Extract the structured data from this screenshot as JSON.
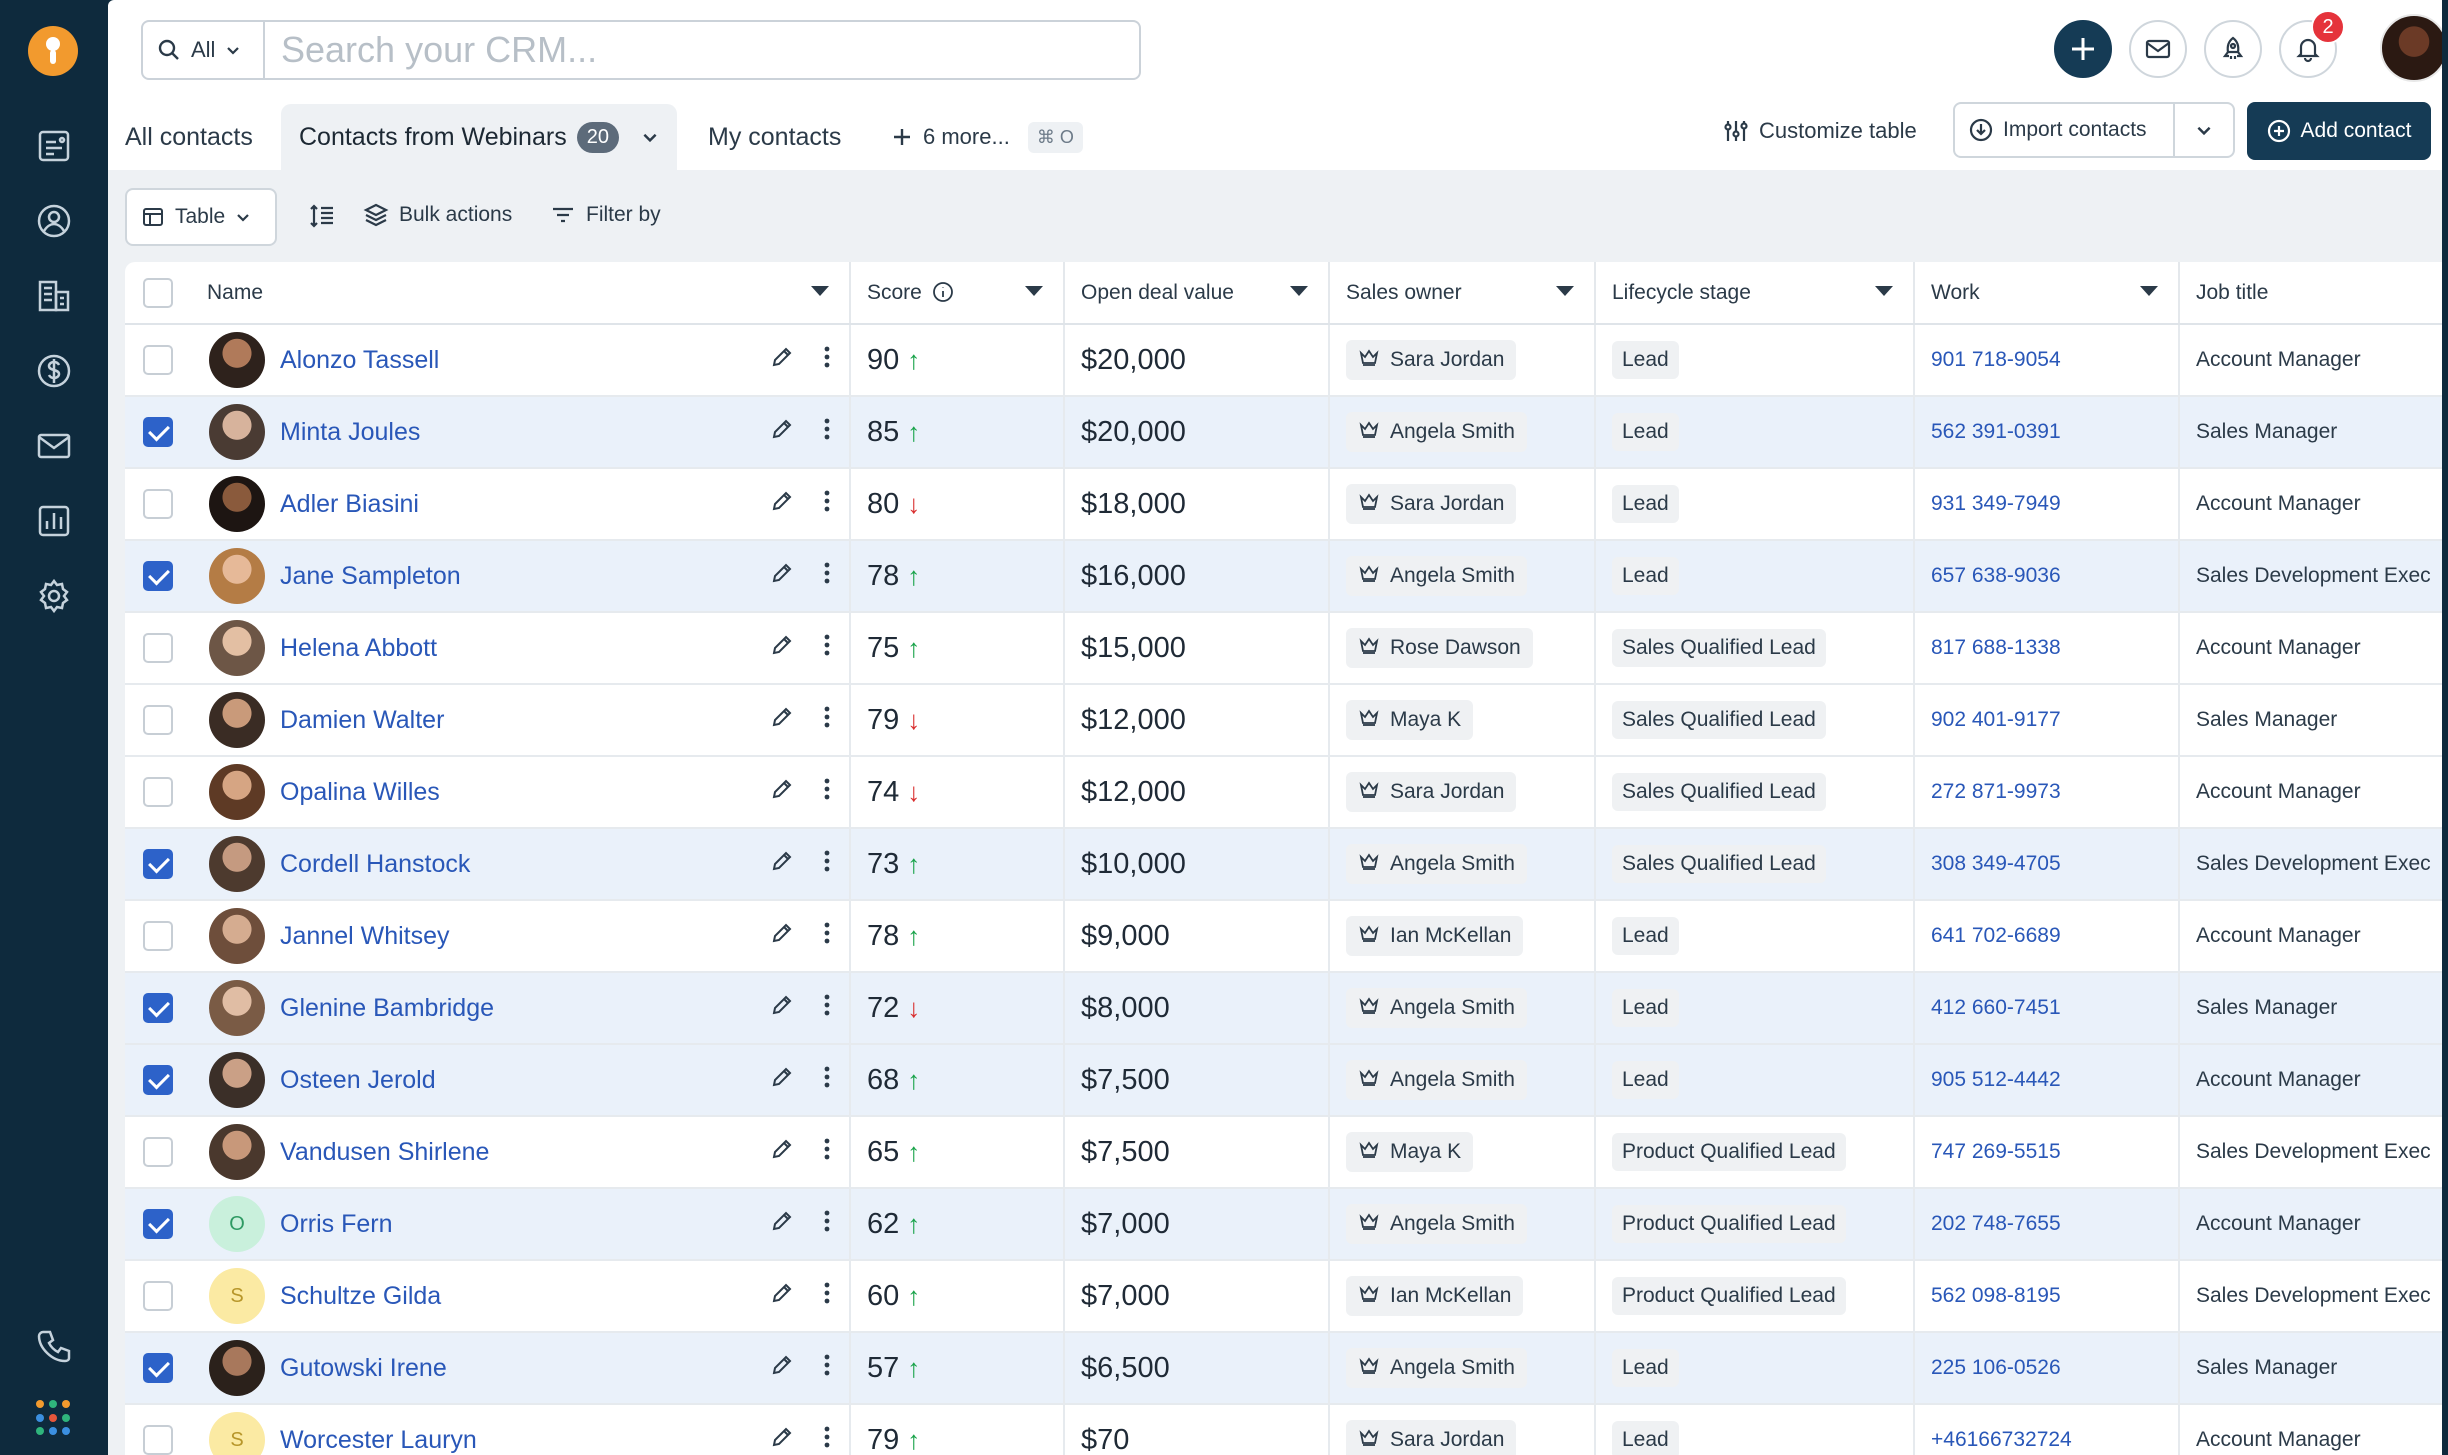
{
  "colors": {
    "sidebar_bg": "#0e2a3d",
    "brand_orange": "#f29a2e",
    "primary_dark": "#153b55",
    "link_blue": "#2957b8",
    "checkbox_blue": "#2d62c9",
    "score_up": "#19a34a",
    "score_down": "#d92f2f",
    "notif_red": "#e5333b"
  },
  "sidebar": {
    "items": [
      {
        "icon": "dashboard-icon"
      },
      {
        "icon": "contacts-icon"
      },
      {
        "icon": "companies-icon"
      },
      {
        "icon": "deals-icon"
      },
      {
        "icon": "email-icon"
      },
      {
        "icon": "reports-icon"
      },
      {
        "icon": "settings-icon"
      }
    ],
    "bottom": [
      {
        "icon": "phone-icon"
      },
      {
        "icon": "apps-grid-icon"
      }
    ]
  },
  "topbar": {
    "search_filter": "All",
    "search_placeholder": "Search your CRM...",
    "notification_count": "2"
  },
  "tabs": {
    "all_contacts": "All contacts",
    "active_tab": "Contacts from Webinars",
    "active_count": "20",
    "my_contacts": "My contacts",
    "more": "6 more...",
    "more_shortcut": "⌘ O"
  },
  "actions": {
    "customize_table": "Customize table",
    "import_contacts": "Import contacts",
    "add_contact": "Add contact"
  },
  "toolbar": {
    "view": "Table",
    "bulk_actions": "Bulk actions",
    "filter_by": "Filter by"
  },
  "table": {
    "columns": {
      "name": "Name",
      "score": "Score",
      "deal": "Open deal value",
      "owner": "Sales owner",
      "stage": "Lifecycle stage",
      "work": "Work",
      "job": "Job title"
    },
    "rows": [
      {
        "checked": false,
        "name": "Alonzo Tassell",
        "avatar": {
          "type": "photo",
          "skin": "#b07a5a",
          "hair": "#2e221c"
        },
        "score": "90",
        "trend": "up",
        "deal": "$20,000",
        "owner": "Sara Jordan",
        "stage": "Lead",
        "work": "901 718-9054",
        "job": "Account Manager"
      },
      {
        "checked": true,
        "name": "Minta Joules",
        "avatar": {
          "type": "photo",
          "skin": "#d7b39c",
          "hair": "#4a3b33"
        },
        "score": "85",
        "trend": "up",
        "deal": "$20,000",
        "owner": "Angela Smith",
        "stage": "Lead",
        "work": "562 391-0391",
        "job": "Sales Manager"
      },
      {
        "checked": false,
        "name": "Adler Biasini",
        "avatar": {
          "type": "photo",
          "skin": "#8a5a3c",
          "hair": "#1d1512"
        },
        "score": "80",
        "trend": "down",
        "deal": "$18,000",
        "owner": "Sara Jordan",
        "stage": "Lead",
        "work": "931 349-7949",
        "job": "Account Manager"
      },
      {
        "checked": true,
        "name": "Jane Sampleton",
        "avatar": {
          "type": "photo",
          "skin": "#e6b998",
          "hair": "#b47c45"
        },
        "score": "78",
        "trend": "up",
        "deal": "$16,000",
        "owner": "Angela Smith",
        "stage": "Lead",
        "work": "657 638-9036",
        "job": "Sales Development Exec"
      },
      {
        "checked": false,
        "name": "Helena Abbott",
        "avatar": {
          "type": "photo",
          "skin": "#e3bfa3",
          "hair": "#6d5646"
        },
        "score": "75",
        "trend": "up",
        "deal": "$15,000",
        "owner": "Rose Dawson",
        "stage": "Sales Qualified Lead",
        "work": "817 688-1338",
        "job": "Account Manager"
      },
      {
        "checked": false,
        "name": "Damien Walter",
        "avatar": {
          "type": "photo",
          "skin": "#c99a7a",
          "hair": "#3a2c24"
        },
        "score": "79",
        "trend": "down",
        "deal": "$12,000",
        "owner": "Maya K",
        "stage": "Sales Qualified Lead",
        "work": "902 401-9177",
        "job": "Sales Manager"
      },
      {
        "checked": false,
        "name": "Opalina Willes",
        "avatar": {
          "type": "photo",
          "skin": "#d6a583",
          "hair": "#5e3a25"
        },
        "score": "74",
        "trend": "down",
        "deal": "$12,000",
        "owner": "Sara Jordan",
        "stage": "Sales Qualified Lead",
        "work": "272 871-9973",
        "job": "Account Manager"
      },
      {
        "checked": true,
        "name": "Cordell Hanstock",
        "avatar": {
          "type": "photo",
          "skin": "#c59a80",
          "hair": "#4d3a2e"
        },
        "score": "73",
        "trend": "up",
        "deal": "$10,000",
        "owner": "Angela Smith",
        "stage": "Sales Qualified Lead",
        "work": "308 349-4705",
        "job": "Sales Development Exec"
      },
      {
        "checked": false,
        "name": "Jannel Whitsey",
        "avatar": {
          "type": "photo",
          "skin": "#d5ac90",
          "hair": "#6e4e3b"
        },
        "score": "78",
        "trend": "up",
        "deal": "$9,000",
        "owner": "Ian McKellan",
        "stage": "Lead",
        "work": "641 702-6689",
        "job": "Account Manager"
      },
      {
        "checked": true,
        "name": "Glenine Bambridge",
        "avatar": {
          "type": "photo",
          "skin": "#e0bda4",
          "hair": "#7a5b45"
        },
        "score": "72",
        "trend": "down",
        "deal": "$8,000",
        "owner": "Angela Smith",
        "stage": "Lead",
        "work": "412 660-7451",
        "job": "Sales Manager"
      },
      {
        "checked": true,
        "name": "Osteen Jerold",
        "avatar": {
          "type": "photo",
          "skin": "#caa086",
          "hair": "#3b2f28"
        },
        "score": "68",
        "trend": "up",
        "deal": "$7,500",
        "owner": "Angela Smith",
        "stage": "Lead",
        "work": "905 512-4442",
        "job": "Account Manager"
      },
      {
        "checked": false,
        "name": "Vandusen Shirlene",
        "avatar": {
          "type": "photo",
          "skin": "#c8987a",
          "hair": "#4a382d"
        },
        "score": "65",
        "trend": "up",
        "deal": "$7,500",
        "owner": "Maya K",
        "stage": "Product Qualified Lead",
        "work": "747 269-5515",
        "job": "Sales Development Exec"
      },
      {
        "checked": true,
        "name": "Orris Fern",
        "avatar": {
          "type": "initial",
          "letter": "O",
          "bg": "#c9f0dc",
          "fg": "#2e9a63"
        },
        "score": "62",
        "trend": "up",
        "deal": "$7,000",
        "owner": "Angela Smith",
        "stage": "Product Qualified Lead",
        "work": "202 748-7655",
        "job": "Account Manager"
      },
      {
        "checked": false,
        "name": "Schultze Gilda",
        "avatar": {
          "type": "initial",
          "letter": "S",
          "bg": "#fbeaa3",
          "fg": "#b7962a"
        },
        "score": "60",
        "trend": "up",
        "deal": "$7,000",
        "owner": "Ian McKellan",
        "stage": "Product Qualified Lead",
        "work": "562 098-8195",
        "job": "Sales Development Exec"
      },
      {
        "checked": true,
        "name": "Gutowski Irene",
        "avatar": {
          "type": "photo",
          "skin": "#a8785c",
          "hair": "#2b211b"
        },
        "score": "57",
        "trend": "up",
        "deal": "$6,500",
        "owner": "Angela Smith",
        "stage": "Lead",
        "work": "225 106-0526",
        "job": "Sales Manager"
      },
      {
        "checked": false,
        "name": "Worcester Lauryn",
        "avatar": {
          "type": "initial",
          "letter": "S",
          "bg": "#fbeaa3",
          "fg": "#b7962a"
        },
        "score": "79",
        "trend": "up",
        "deal": "$70",
        "owner": "Sara Jordan",
        "stage": "Lead",
        "work": "+46166732724",
        "job": "Account Manager"
      }
    ]
  }
}
